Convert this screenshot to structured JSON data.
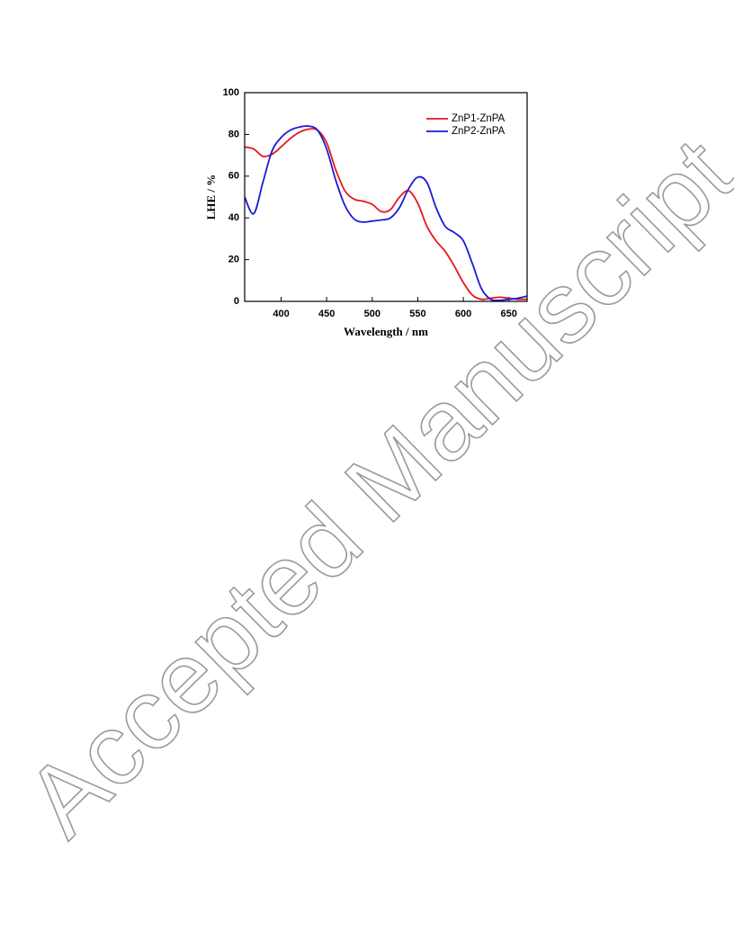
{
  "chart_data": {
    "type": "line",
    "xlabel": "Wavelength / nm",
    "ylabel": "LHE / %",
    "x": [
      360,
      370,
      380,
      390,
      400,
      410,
      420,
      430,
      440,
      450,
      460,
      470,
      480,
      490,
      500,
      510,
      520,
      530,
      540,
      550,
      560,
      570,
      580,
      590,
      600,
      610,
      620,
      630,
      640,
      650,
      660,
      670
    ],
    "series": [
      {
        "name": "ZnP1-ZnPA",
        "color": "#e8161b",
        "values": [
          74,
          73,
          69.5,
          70.5,
          74,
          78,
          81,
          82.5,
          82,
          76,
          63,
          53,
          49,
          48,
          46.5,
          43,
          44,
          50,
          53,
          47,
          36,
          29,
          24,
          17,
          9,
          3,
          1,
          1.5,
          2,
          1.5,
          1,
          1
        ]
      },
      {
        "name": "ZnP2-ZnPA",
        "color": "#1a1ad6",
        "values": [
          50,
          42,
          57,
          72,
          78.5,
          82,
          83.5,
          84,
          82,
          73,
          58,
          46,
          39.5,
          38,
          38.5,
          39,
          40,
          45,
          54,
          59.5,
          57,
          45,
          36,
          33,
          29,
          18,
          6,
          1,
          0.5,
          1,
          1.5,
          2.5
        ]
      }
    ],
    "xlim": [
      360,
      670
    ],
    "xticks": [
      400,
      450,
      500,
      550,
      600,
      650
    ],
    "ylim": [
      0,
      100
    ],
    "yticks": [
      0,
      20,
      40,
      60,
      80,
      100
    ],
    "legend": "upper right"
  },
  "watermark": "Accepted Manuscript"
}
